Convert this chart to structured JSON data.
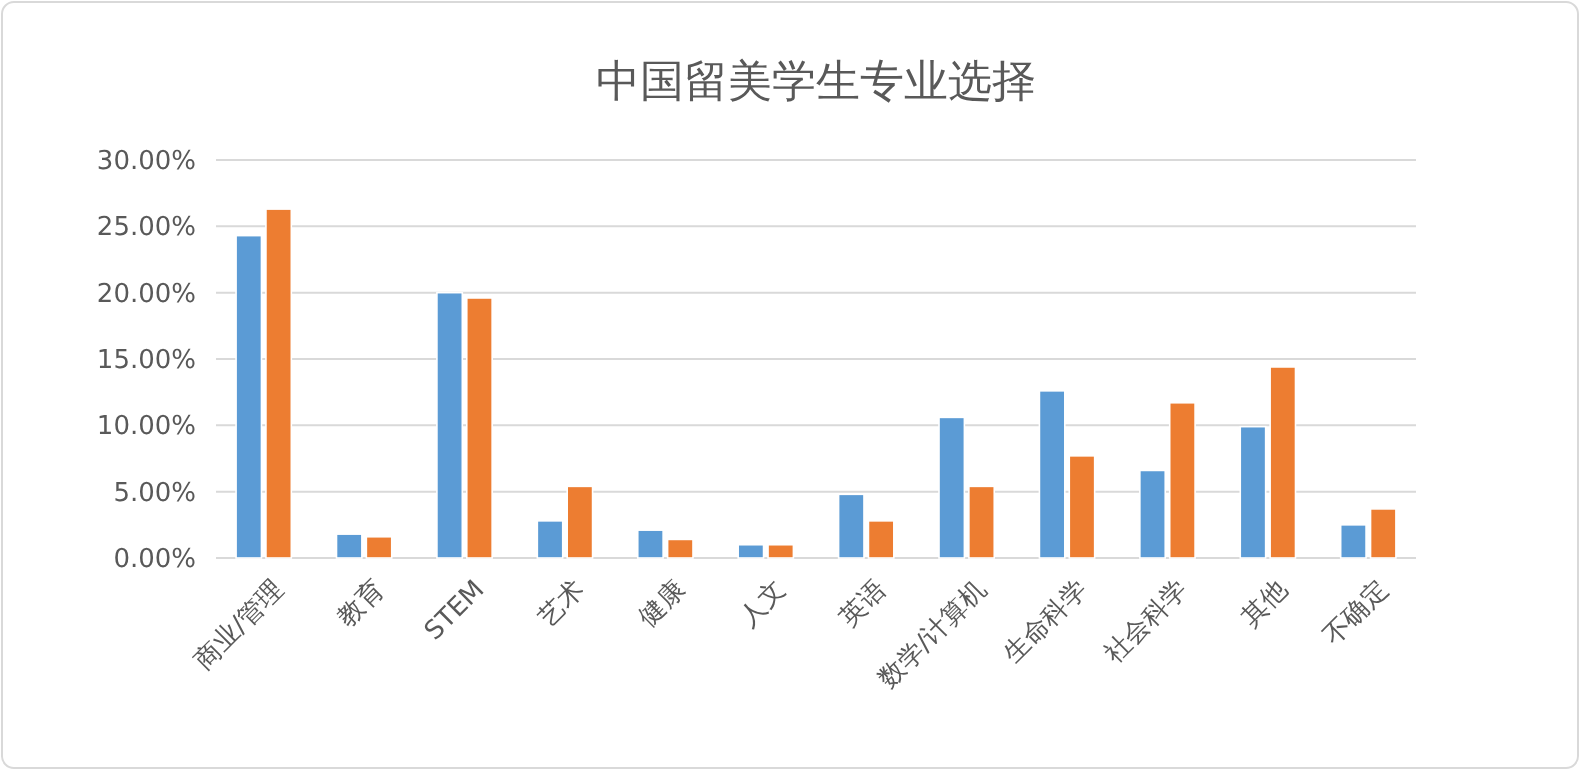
{
  "chart_data": {
    "type": "bar",
    "title": "中国留美学生专业选择",
    "categories": [
      "商业/管理",
      "教育",
      "STEM",
      "艺术",
      "健康",
      "人文",
      "英语",
      "数学/计算机",
      "生命科学",
      "社会科学",
      "其他",
      "不确定"
    ],
    "series": [
      {
        "color": "#5b9bd5",
        "values": [
          24.3,
          1.8,
          20.0,
          2.8,
          2.1,
          1.0,
          4.8,
          10.6,
          12.6,
          6.6,
          9.9,
          2.5
        ]
      },
      {
        "color": "#ed7d31",
        "values": [
          26.3,
          1.6,
          19.6,
          5.4,
          1.4,
          1.0,
          2.8,
          5.4,
          7.7,
          11.7,
          14.4,
          3.7
        ]
      }
    ],
    "ylim": [
      0,
      30
    ],
    "yticks": [
      {
        "value": 0,
        "label": "0.00%"
      },
      {
        "value": 5,
        "label": "5.00%"
      },
      {
        "value": 10,
        "label": "10.00%"
      },
      {
        "value": 15,
        "label": "15.00%"
      },
      {
        "value": 20,
        "label": "20.00%"
      },
      {
        "value": 25,
        "label": "25.00%"
      },
      {
        "value": 30,
        "label": "30.00%"
      }
    ],
    "grid": "y"
  }
}
